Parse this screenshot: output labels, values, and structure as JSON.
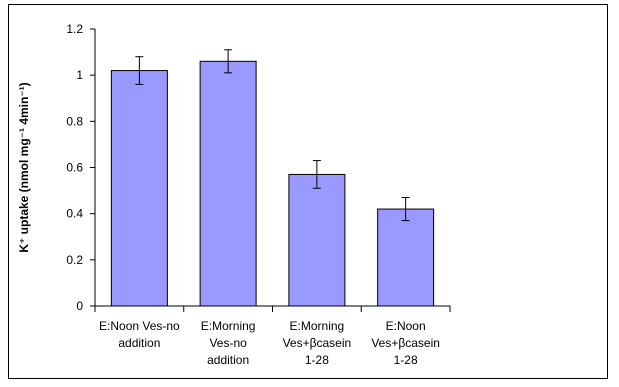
{
  "chart_data": {
    "type": "bar",
    "ylabel": "K⁺ uptake (nmol mg⁻¹ 4min⁻¹)",
    "xlabel": "",
    "title": "",
    "ylim": [
      0,
      1.2
    ],
    "yticks": [
      "0",
      "0.2",
      "0.4",
      "0.6",
      "0.8",
      "1",
      "1.2"
    ],
    "ytick_values": [
      0,
      0.2,
      0.4,
      0.6,
      0.8,
      1.0,
      1.2
    ],
    "categories": [
      [
        "E:Noon Ves-no",
        "addition"
      ],
      [
        "E:Morning",
        "Ves-no",
        "addition"
      ],
      [
        "E:Morning",
        "Ves+βcasein",
        "1-28"
      ],
      [
        "E:Noon",
        "Ves+βcasein",
        "1-28"
      ]
    ],
    "values": [
      1.02,
      1.06,
      0.57,
      0.42
    ],
    "errors": [
      0.06,
      0.05,
      0.06,
      0.05
    ],
    "bar_color": "#9999ff",
    "grid": false
  }
}
